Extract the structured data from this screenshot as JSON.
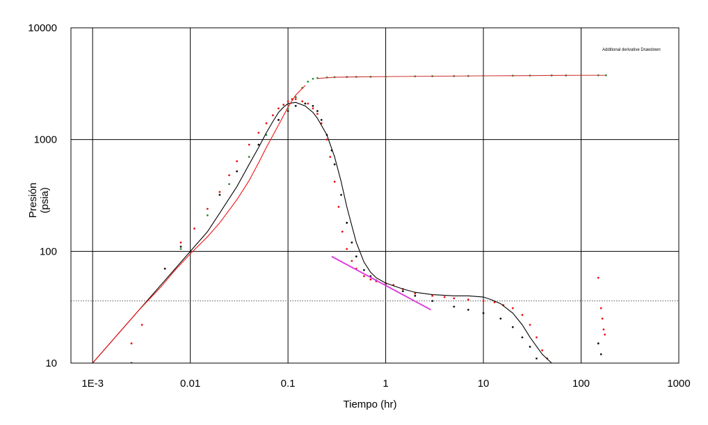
{
  "chart_data": {
    "type": "scatter",
    "title": "",
    "xlabel": "Tiempo (hr)",
    "ylabel_line1": "Presión",
    "ylabel_line2": "(psia)",
    "x_scale": "log",
    "y_scale": "log",
    "xlim": [
      0.0006,
      1000
    ],
    "ylim": [
      10,
      10000
    ],
    "x_ticks": [
      {
        "value": 0.001,
        "label": "1E-3"
      },
      {
        "value": 0.01,
        "label": "0.01"
      },
      {
        "value": 0.1,
        "label": "0.1"
      },
      {
        "value": 1,
        "label": "1"
      },
      {
        "value": 10,
        "label": "10"
      },
      {
        "value": 100,
        "label": "100"
      },
      {
        "value": 1000,
        "label": "1000"
      }
    ],
    "y_ticks": [
      {
        "value": 10,
        "label": "10"
      },
      {
        "value": 100,
        "label": "100"
      },
      {
        "value": 1000,
        "label": "1000"
      },
      {
        "value": 10000,
        "label": "10000"
      }
    ],
    "grid": true,
    "reference_line_y": 36,
    "legend_text": "Additional derivative Drawdown",
    "legend_position": "top-right",
    "colors": {
      "pressure_data": "#2e8b2e",
      "pressure_model": "#cc3333",
      "derivative_data_red": "#ee1111",
      "derivative_data_black": "#111111",
      "derivative_model_black": "#000000",
      "derivative_model_red": "#ee1111",
      "slope_line": "#e040e0",
      "grid": "#000000",
      "reference_line": "#555555"
    },
    "series": [
      {
        "key": "pressure_data",
        "style": "points",
        "x": [
          0.008,
          0.015,
          0.025,
          0.04,
          0.06,
          0.08,
          0.1,
          0.12,
          0.14,
          0.16,
          0.18,
          0.2,
          0.25,
          0.3,
          0.4,
          0.5,
          0.7,
          1,
          2,
          3,
          5,
          7,
          10,
          20,
          30,
          50,
          70,
          100,
          150,
          180
        ],
        "y": [
          105,
          210,
          400,
          700,
          1100,
          1500,
          1900,
          2400,
          2900,
          3300,
          3500,
          3550,
          3600,
          3620,
          3630,
          3640,
          3650,
          3660,
          3680,
          3690,
          3700,
          3710,
          3720,
          3730,
          3740,
          3750,
          3750,
          3760,
          3760,
          3760
        ]
      },
      {
        "key": "pressure_model",
        "style": "line",
        "x": [
          0.2,
          0.3,
          0.5,
          1,
          2,
          5,
          10,
          20,
          50,
          100,
          180
        ],
        "y": [
          3520,
          3610,
          3640,
          3660,
          3680,
          3700,
          3720,
          3730,
          3750,
          3760,
          3760
        ]
      },
      {
        "key": "derivative_data_red",
        "style": "points",
        "x": [
          0.0025,
          0.0032,
          0.008,
          0.011,
          0.015,
          0.02,
          0.025,
          0.03,
          0.04,
          0.05,
          0.06,
          0.07,
          0.08,
          0.09,
          0.1,
          0.11,
          0.12,
          0.14,
          0.16,
          0.18,
          0.2,
          0.22,
          0.25,
          0.27,
          0.3,
          0.33,
          0.36,
          0.4,
          0.45,
          0.5,
          0.6,
          0.7,
          0.8,
          1,
          1.2,
          1.5,
          2,
          3,
          4,
          5,
          7,
          10,
          13,
          16,
          20,
          25,
          30,
          35,
          40,
          45,
          150,
          160,
          165,
          170,
          175
        ],
        "y": [
          15,
          22,
          120,
          160,
          240,
          340,
          480,
          640,
          900,
          1150,
          1400,
          1650,
          1900,
          2050,
          2200,
          2300,
          2300,
          2200,
          2100,
          1900,
          1700,
          1400,
          1000,
          700,
          420,
          250,
          150,
          105,
          82,
          70,
          60,
          56,
          54,
          52,
          50,
          46,
          42,
          40,
          39,
          38,
          37,
          36,
          35,
          33,
          31,
          27,
          22,
          17,
          13,
          11,
          58,
          31,
          25,
          20,
          18
        ]
      },
      {
        "key": "derivative_data_black",
        "style": "points",
        "x": [
          0.0025,
          0.0055,
          0.008,
          0.02,
          0.03,
          0.05,
          0.08,
          0.1,
          0.12,
          0.15,
          0.18,
          0.2,
          0.22,
          0.25,
          0.28,
          0.3,
          0.35,
          0.4,
          0.45,
          0.5,
          0.6,
          0.7,
          0.8,
          1,
          1.5,
          2,
          3,
          5,
          7,
          10,
          15,
          20,
          25,
          30,
          35,
          150,
          160
        ],
        "y": [
          10,
          70,
          110,
          320,
          520,
          900,
          1500,
          1800,
          2000,
          2100,
          2000,
          1800,
          1500,
          1100,
          800,
          600,
          320,
          180,
          120,
          90,
          68,
          60,
          55,
          50,
          44,
          40,
          36,
          32,
          30,
          28,
          25,
          21,
          17,
          14,
          11,
          15,
          12
        ]
      },
      {
        "key": "derivative_model_black",
        "style": "line",
        "x": [
          0.001,
          0.002,
          0.003,
          0.005,
          0.007,
          0.01,
          0.015,
          0.02,
          0.03,
          0.04,
          0.05,
          0.06,
          0.07,
          0.08,
          0.09,
          0.1,
          0.12,
          0.15,
          0.18,
          0.2,
          0.25,
          0.3,
          0.35,
          0.4,
          0.5,
          0.6,
          0.7,
          0.8,
          1,
          1.5,
          2,
          3,
          5,
          7,
          10,
          12,
          15,
          20,
          25,
          30,
          40,
          50
        ],
        "y": [
          10,
          20,
          30,
          50,
          70,
          100,
          150,
          220,
          380,
          600,
          850,
          1150,
          1450,
          1750,
          1950,
          2100,
          2150,
          2000,
          1750,
          1550,
          1100,
          700,
          420,
          250,
          120,
          80,
          65,
          58,
          52,
          46,
          43,
          41,
          40,
          40,
          39,
          37,
          34,
          28,
          22,
          17,
          12,
          10
        ]
      },
      {
        "key": "derivative_model_red",
        "style": "line",
        "x": [
          0.001,
          0.002,
          0.003,
          0.005,
          0.007,
          0.01,
          0.015,
          0.02,
          0.03,
          0.04,
          0.05,
          0.06,
          0.08,
          0.1,
          0.12,
          0.15
        ],
        "y": [
          10,
          20,
          30,
          48,
          68,
          95,
          135,
          180,
          290,
          430,
          620,
          850,
          1350,
          1950,
          2500,
          3050
        ]
      },
      {
        "key": "slope_line",
        "style": "line",
        "x": [
          0.28,
          2.9
        ],
        "y": [
          90,
          30
        ]
      }
    ]
  }
}
